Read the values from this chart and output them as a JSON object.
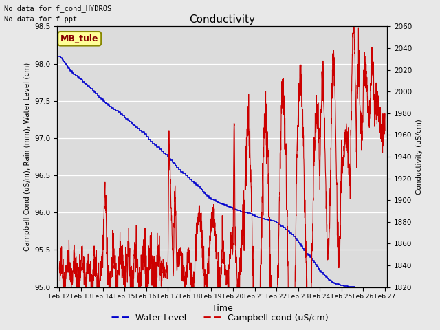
{
  "title": "Conductivity",
  "xlabel": "Time",
  "ylabel_left": "Campbell Cond (uS/m), Rain (mm), Water Level (cm)",
  "ylabel_right": "Conductivity (uS/cm)",
  "annotation1": "No data for f_cond_HYDROS",
  "annotation2": "No data for f_ppt",
  "box_label": "MB_tule",
  "left_ylim": [
    95.0,
    98.5
  ],
  "right_ylim": [
    1820,
    2060
  ],
  "left_yticks": [
    95.0,
    95.5,
    96.0,
    96.5,
    97.0,
    97.5,
    98.0,
    98.5
  ],
  "right_yticks": [
    1820,
    1840,
    1860,
    1880,
    1900,
    1920,
    1940,
    1960,
    1980,
    2000,
    2020,
    2040,
    2060
  ],
  "xtick_labels": [
    "Feb 12",
    "Feb 13",
    "Feb 14",
    "Feb 15",
    "Feb 16",
    "Feb 17",
    "Feb 18",
    "Feb 19",
    "Feb 20",
    "Feb 21",
    "Feb 22",
    "Feb 23",
    "Feb 24",
    "Feb 25",
    "Feb 26",
    "Feb 27"
  ],
  "fig_facecolor": "#e8e8e8",
  "ax_facecolor": "#dcdcdc",
  "grid_color": "#ffffff",
  "water_level_color": "#0000cc",
  "campbell_color": "#cc0000",
  "legend_entries": [
    "Water Level",
    "Campbell cond (uS/cm)"
  ]
}
